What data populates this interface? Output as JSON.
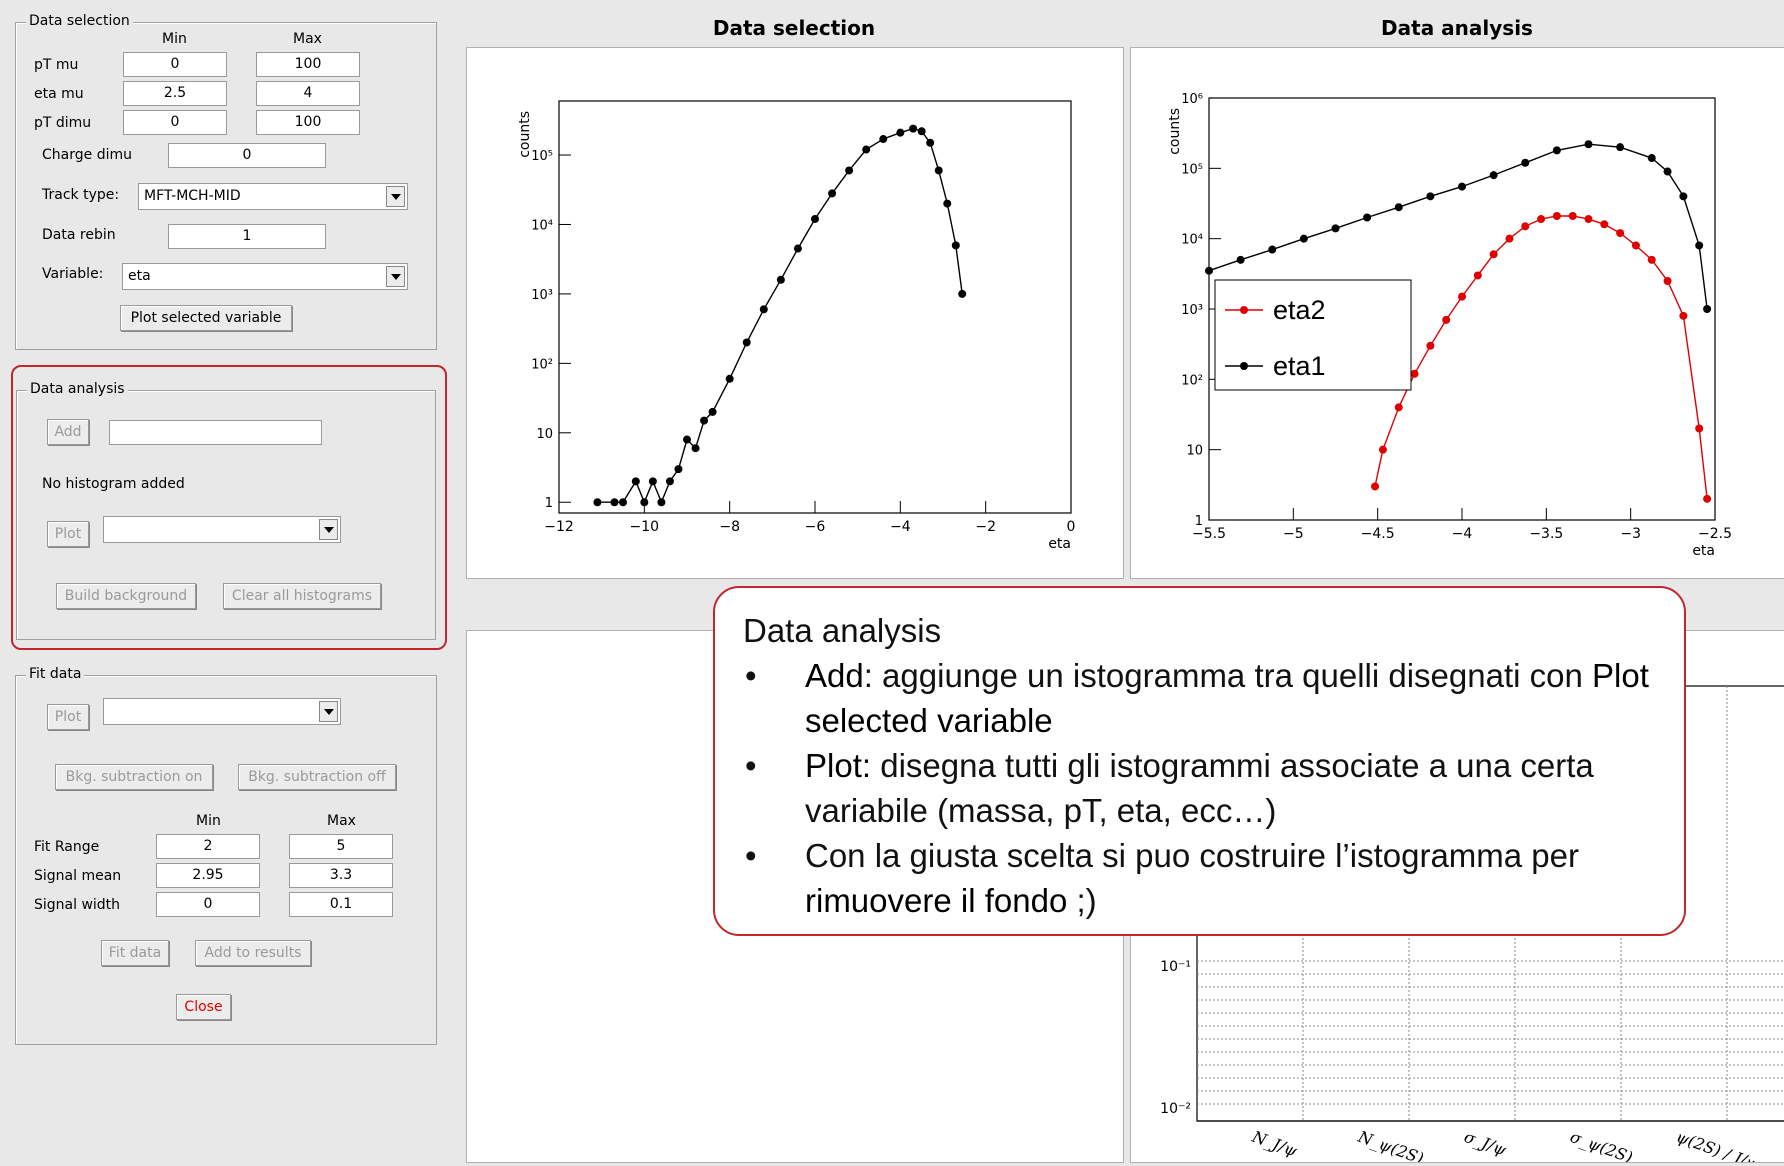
{
  "data_selection": {
    "title": "Data selection",
    "min_header": "Min",
    "max_header": "Max",
    "rows": [
      {
        "label": "pT mu",
        "min": "0",
        "max": "100"
      },
      {
        "label": "eta mu",
        "min": "2.5",
        "max": "4"
      },
      {
        "label": "pT dimu",
        "min": "0",
        "max": "100"
      }
    ],
    "charge_label": "Charge dimu",
    "charge_value": "0",
    "track_label": "Track type:",
    "track_value": "MFT-MCH-MID",
    "rebin_label": "Data rebin",
    "rebin_value": "1",
    "variable_label": "Variable:",
    "variable_value": "eta",
    "plot_button": "Plot selected variable"
  },
  "data_analysis": {
    "title": "Data analysis",
    "add_button": "Add",
    "add_input": "",
    "status": "No histogram added",
    "plot_button": "Plot",
    "plot_select": "",
    "build_bkg_button": "Build background",
    "clear_button": "Clear all histograms"
  },
  "fit_data": {
    "title": "Fit data",
    "plot_button": "Plot",
    "plot_select": "",
    "bkg_on_button": "Bkg. subtraction on",
    "bkg_off_button": "Bkg. subtraction off",
    "min_header": "Min",
    "max_header": "Max",
    "rows": [
      {
        "label": "Fit Range",
        "min": "2",
        "max": "5"
      },
      {
        "label": "Signal mean",
        "min": "2.95",
        "max": "3.3"
      },
      {
        "label": "Signal width",
        "min": "0",
        "max": "0.1"
      }
    ],
    "fit_button": "Fit data",
    "add_results_button": "Add to results",
    "close_button": "Close",
    "close_color": "#e00000"
  },
  "panels": {
    "selection_title": "Data selection",
    "analysis_title": "Data analysis"
  },
  "callout": {
    "heading": "Data analysis",
    "b1_strong": "Add",
    "b1_text": ": aggiunge un istogramma tra quelli disegnati con ",
    "b1_strong2": "Plot selected variable",
    "b2_strong": "Plot:",
    "b2_text": " disegna tutti gli istogrammi associate a una certa variabile (massa, pT, eta, ecc…)",
    "b3_text": "Con la giusta scelta si puo costruire l’istogramma per ",
    "b3_strong": "rimuovere il fondo",
    "b3_tail": " ;)",
    "border_color": "#c0282e"
  },
  "chart_data": [
    {
      "type": "line",
      "title": "",
      "xlabel": "eta",
      "ylabel": "counts",
      "yscale": "log",
      "xlim": [
        -12,
        0
      ],
      "ylim": [
        0.7,
        600000
      ],
      "xticks": [
        "−12",
        "−10",
        "−8",
        "−6",
        "−4",
        "−2",
        "0"
      ],
      "yticks": [
        "1",
        "10",
        "10²",
        "10³",
        "10⁴",
        "10⁵"
      ],
      "series": [
        {
          "name": "",
          "color": "#000000",
          "x": [
            -11.1,
            -10.7,
            -10.5,
            -10.2,
            -10.0,
            -9.8,
            -9.6,
            -9.4,
            -9.2,
            -9.0,
            -8.8,
            -8.6,
            -8.4,
            -8.0,
            -7.6,
            -7.2,
            -6.8,
            -6.4,
            -6.0,
            -5.6,
            -5.2,
            -4.8,
            -4.4,
            -4.0,
            -3.7,
            -3.5,
            -3.3,
            -3.1,
            -2.9,
            -2.7,
            -2.55
          ],
          "y": [
            1,
            1,
            1,
            2,
            1,
            2,
            1,
            2,
            3,
            8,
            6,
            15,
            20,
            60,
            200,
            600,
            1600,
            4500,
            12000,
            28000,
            60000,
            120000,
            170000,
            210000,
            240000,
            220000,
            150000,
            60000,
            20000,
            5000,
            1000
          ]
        }
      ]
    },
    {
      "type": "line",
      "title": "",
      "xlabel": "eta",
      "ylabel": "counts",
      "yscale": "log",
      "xlim": [
        -5.7,
        -2.5
      ],
      "ylim": [
        1,
        1000000
      ],
      "xticks": [
        "−5.5",
        "−5",
        "−4.5",
        "−4",
        "−3.5",
        "−3",
        "−2.5"
      ],
      "yticks": [
        "1",
        "10",
        "10²",
        "10³",
        "10⁴",
        "10⁵",
        "10⁶"
      ],
      "legend": "left",
      "series": [
        {
          "name": "eta2",
          "color": "#e00000",
          "x": [
            -4.65,
            -4.6,
            -4.5,
            -4.4,
            -4.3,
            -4.2,
            -4.1,
            -4.0,
            -3.9,
            -3.8,
            -3.7,
            -3.6,
            -3.5,
            -3.4,
            -3.3,
            -3.2,
            -3.1,
            -3.0,
            -2.9,
            -2.8,
            -2.7,
            -2.6,
            -2.55
          ],
          "y": [
            3,
            10,
            40,
            120,
            300,
            700,
            1500,
            3000,
            6000,
            10000,
            15000,
            19000,
            21000,
            21000,
            19000,
            16000,
            12000,
            8000,
            5000,
            2500,
            800,
            20,
            2
          ]
        },
        {
          "name": "eta1",
          "color": "#000000",
          "x": [
            -5.7,
            -5.5,
            -5.3,
            -5.1,
            -4.9,
            -4.7,
            -4.5,
            -4.3,
            -4.1,
            -3.9,
            -3.7,
            -3.5,
            -3.3,
            -3.1,
            -2.9,
            -2.8,
            -2.7,
            -2.6,
            -2.55
          ],
          "y": [
            3500,
            5000,
            7000,
            10000,
            14000,
            20000,
            28000,
            40000,
            55000,
            80000,
            120000,
            180000,
            220000,
            200000,
            140000,
            90000,
            40000,
            8000,
            1000
          ]
        }
      ]
    }
  ],
  "bottom_chart": {
    "yticks": [
      "10⁻¹",
      "10⁻²"
    ],
    "xticks": [
      "N_J/ψ",
      "N_ψ(2S)",
      "σ_J/ψ",
      "σ_ψ(2S)",
      "ψ(2S) / J/ψ"
    ]
  }
}
